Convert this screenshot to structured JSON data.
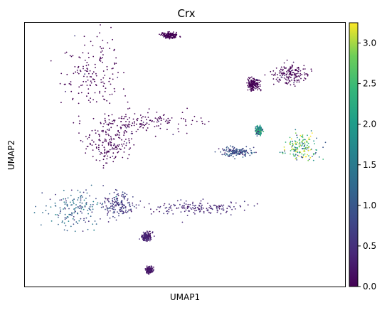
{
  "chart_data": {
    "type": "scatter",
    "title": "Crx",
    "xlabel": "UMAP1",
    "ylabel": "UMAP2",
    "xticks": [],
    "yticks": [],
    "grid": false,
    "colorbar": {
      "colormap": "viridis",
      "range": [
        0,
        3.25
      ],
      "ticks": [
        0.0,
        0.5,
        1.0,
        1.5,
        2.0,
        2.5,
        3.0
      ],
      "tick_labels": [
        "0.0",
        "0.5",
        "1.0",
        "1.5",
        "2.0",
        "2.5",
        "3.0"
      ],
      "placement": "right"
    },
    "clusters": [
      {
        "id": "top-left-large",
        "center": [
          -6.2,
          8.0
        ],
        "spread": [
          2.1,
          2.2
        ],
        "expression_mean": 0.05
      },
      {
        "id": "mid-band",
        "center": [
          -3.0,
          4.6
        ],
        "spread": [
          3.4,
          0.7
        ],
        "expression_mean": 0.1
      },
      {
        "id": "mid-lower",
        "center": [
          -5.2,
          3.0
        ],
        "spread": [
          1.5,
          1.2
        ],
        "expression_mean": 0.1
      },
      {
        "id": "top-small",
        "center": [
          -1.0,
          11.0
        ],
        "spread": [
          0.5,
          0.2
        ],
        "expression_mean": 0.05
      },
      {
        "id": "right-top",
        "center": [
          7.2,
          8.1
        ],
        "spread": [
          1.1,
          0.7
        ],
        "expression_mean": 0.1
      },
      {
        "id": "right-top-small",
        "center": [
          4.7,
          7.4
        ],
        "spread": [
          0.4,
          0.4
        ],
        "expression_mean": 0.1
      },
      {
        "id": "right-mid-small",
        "center": [
          5.1,
          4.0
        ],
        "spread": [
          0.2,
          0.3
        ],
        "expression_mean": 1.8
      },
      {
        "id": "right-high",
        "center": [
          8.0,
          2.8
        ],
        "spread": [
          1.0,
          0.8
        ],
        "expression_mean": 2.2
      },
      {
        "id": "right-bridge",
        "center": [
          3.5,
          2.4
        ],
        "spread": [
          0.9,
          0.3
        ],
        "expression_mean": 0.8
      },
      {
        "id": "bottom-left",
        "center": [
          -7.6,
          -1.8
        ],
        "spread": [
          1.9,
          1.3
        ],
        "expression_mean": 1.1
      },
      {
        "id": "bottom-mid",
        "center": [
          -4.5,
          -1.5
        ],
        "spread": [
          1.0,
          0.9
        ],
        "expression_mean": 0.6
      },
      {
        "id": "bottom-strand",
        "center": [
          0.8,
          -1.7
        ],
        "spread": [
          3.0,
          0.4
        ],
        "expression_mean": 0.4
      },
      {
        "id": "bottom-small-a",
        "center": [
          -2.6,
          -3.8
        ],
        "spread": [
          0.3,
          0.3
        ],
        "expression_mean": 0.3
      },
      {
        "id": "bottom-small-b",
        "center": [
          -2.4,
          -6.3
        ],
        "spread": [
          0.2,
          0.2
        ],
        "expression_mean": 0.2
      }
    ]
  }
}
